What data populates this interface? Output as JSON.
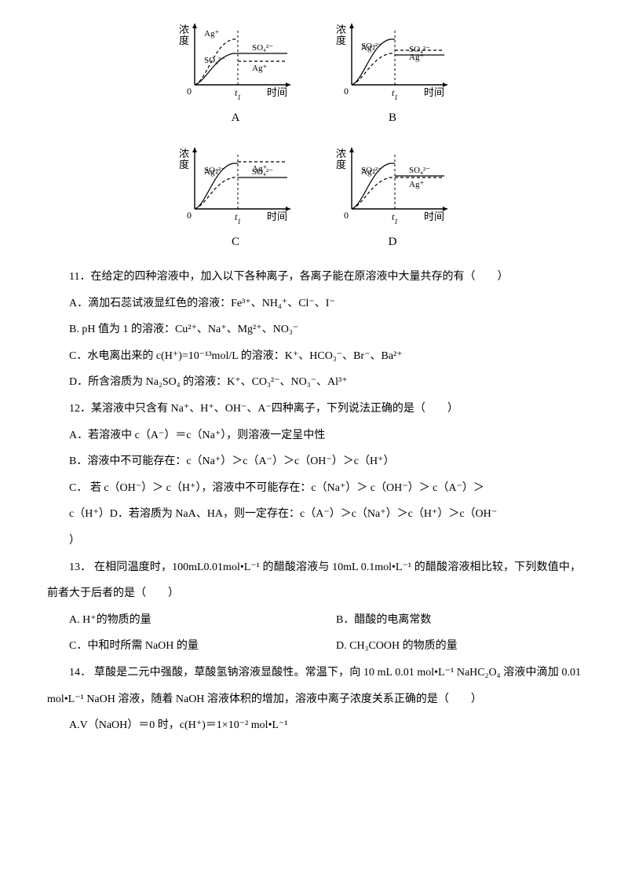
{
  "charts": {
    "ylabel": "浓度",
    "xlabel": "时间",
    "tick": "t",
    "ticksub": "1",
    "series_labels": {
      "ag": "Ag⁺",
      "so4": "SO₄²⁻"
    },
    "row1": [
      {
        "letter": "A",
        "so4_before": 40,
        "so4_after": 40,
        "ag_before": 58,
        "ag_after": 30
      },
      {
        "letter": "B",
        "so4_before": 58,
        "so4_after": 38,
        "ag_before": 40,
        "ag_after": 44
      }
    ],
    "row2": [
      {
        "letter": "C",
        "so4_before": 58,
        "so4_after": 40,
        "ag_before": 40,
        "ag_after": 60
      },
      {
        "letter": "D",
        "so4_before": 58,
        "so4_after": 42,
        "ag_before": 40,
        "ag_after": 40
      }
    ],
    "axis_color": "#000000",
    "line_color": "#000000",
    "dash_color": "#000000",
    "label_fontsize": 12
  },
  "q11": {
    "stem": "11．在给定的四种溶液中，加入以下各种离子，各离子能在原溶液中大量共存的有（　　）",
    "A": "A．滴加石蕊试液显红色的溶液：Fe³⁺、NH₄⁺、Cl⁻、I⁻",
    "B": "B. pH 值为 1 的溶液：Cu²⁺、Na⁺、Mg²⁺、NO₃⁻",
    "C": "C．水电离出来的 c(H⁺)=10⁻¹³mol/L 的溶液：K⁺、HCO₃⁻、Br⁻、Ba²⁺",
    "D": "D．所含溶质为 Na₂SO₄ 的溶液：K⁺、CO₃²⁻、NO₃⁻、Al³⁺"
  },
  "q12": {
    "stem": "12．某溶液中只含有 Na⁺、H⁺、OH⁻、A⁻四种离子，下列说法正确的是（　　）",
    "A": "A．若溶液中 c（A⁻）＝c（Na⁺），则溶液一定呈中性",
    "B": "B．溶液中不可能存在：c（Na⁺）＞c（A⁻）＞c（OH⁻）＞c（H⁺）",
    "C": "C． 若 c（OH⁻）＞ c（H⁺），溶液中不可能存在：c（Na⁺）＞ c（OH⁻）＞ c（A⁻）＞",
    "C2": "c（H⁺）D．若溶质为 NaA、HA，则一定存在：c（A⁻）＞c（Na⁺）＞c（H⁺）＞c（OH⁻",
    "C3": "）"
  },
  "q13": {
    "stem": "13． 在相同温度时，100mL0.01mol•L⁻¹ 的醋酸溶液与 10mL 0.1mol•L⁻¹ 的醋酸溶液相比较，下列数值中，前者大于后者的是（　　）",
    "A": "A. H⁺的物质的量",
    "B": "B．醋酸的电离常数",
    "Cc": "C．中和时所需 NaOH 的量",
    "D": "D. CH₃COOH 的物质的量"
  },
  "q14": {
    "stem": "14． 草酸是二元中强酸，草酸氢钠溶液显酸性。常温下，向 10 mL 0.01 mol•L⁻¹ NaHC₂O₄ 溶液中滴加 0.01 mol•L⁻¹ NaOH 溶液，随着 NaOH 溶液体积的增加，溶液中离子浓度关系正确的是（　　）",
    "A": "A.V（NaOH）＝0 时，c(H⁺)＝1×10⁻² mol•L⁻¹"
  }
}
